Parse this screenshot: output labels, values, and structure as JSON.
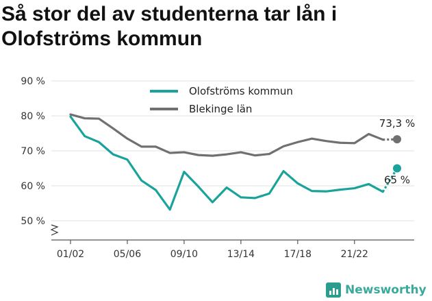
{
  "title": "Så stor del av studenterna tar lån i Olofströms kommun",
  "brand": "Newsworthy",
  "chart_data": {
    "type": "line",
    "categories": [
      "01/02",
      "02/03",
      "03/04",
      "04/05",
      "05/06",
      "06/07",
      "07/08",
      "08/09",
      "09/10",
      "10/11",
      "11/12",
      "12/13",
      "13/14",
      "14/15",
      "15/16",
      "16/17",
      "17/18",
      "18/19",
      "19/20",
      "20/21",
      "21/22",
      "22/23",
      "23/24",
      "24/25"
    ],
    "x_tick_labels": [
      "01/02",
      "05/06",
      "09/10",
      "13/14",
      "17/18",
      "21/22"
    ],
    "ylim": [
      50,
      90
    ],
    "y_ticks": [
      50,
      60,
      70,
      80,
      90
    ],
    "y_tick_labels": [
      "50 %",
      "60 %",
      "70 %",
      "80 %",
      "90 %"
    ],
    "y_axis_break": true,
    "grid": true,
    "legend_position": "top-center",
    "series": [
      {
        "name": "Olofströms kommun",
        "color": "#1aa39a",
        "values": [
          79.8,
          74.2,
          72.5,
          69.0,
          67.5,
          61.5,
          58.8,
          53.2,
          64.0,
          59.8,
          55.3,
          59.5,
          56.7,
          56.5,
          57.8,
          64.2,
          60.7,
          58.5,
          58.4,
          58.9,
          59.3,
          60.5,
          58.3,
          65.0
        ],
        "end_label": "65 %"
      },
      {
        "name": "Blekinge län",
        "color": "#707073",
        "values": [
          80.4,
          79.3,
          79.2,
          76.4,
          73.5,
          71.2,
          71.2,
          69.4,
          69.6,
          68.8,
          68.6,
          69.0,
          69.6,
          68.7,
          69.1,
          71.3,
          72.5,
          73.5,
          72.8,
          72.3,
          72.2,
          74.8,
          73.2,
          73.3
        ],
        "end_label": "73,3 %"
      }
    ]
  }
}
